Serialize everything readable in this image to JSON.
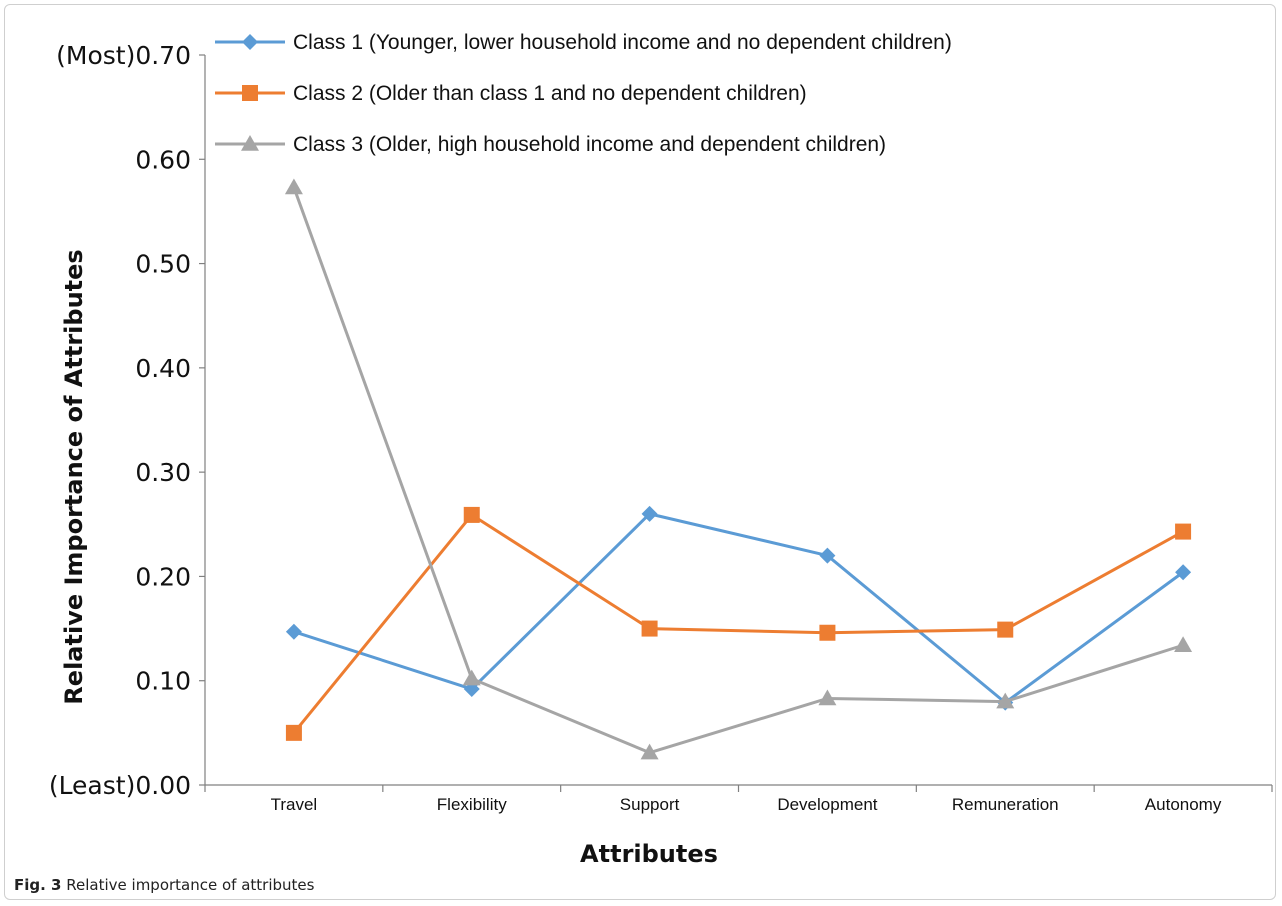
{
  "chart_data": {
    "type": "line",
    "categories": [
      "Travel",
      "Flexibility",
      "Support",
      "Development",
      "Remuneration",
      "Autonomy"
    ],
    "series": [
      {
        "name": "Class 1 (Younger, lower household income and no dependent children)",
        "color": "#5b9bd5",
        "marker": "diamond",
        "values": [
          0.147,
          0.092,
          0.26,
          0.22,
          0.079,
          0.204
        ]
      },
      {
        "name": "Class 2 (Older than class 1 and no dependent children)",
        "color": "#ed7d31",
        "marker": "square",
        "values": [
          0.05,
          0.259,
          0.15,
          0.146,
          0.149,
          0.243
        ]
      },
      {
        "name": "Class 3 (Older, high household income and dependent children)",
        "color": "#a5a5a5",
        "marker": "triangle",
        "values": [
          0.573,
          0.102,
          0.031,
          0.083,
          0.08,
          0.134
        ]
      }
    ],
    "ylim": [
      0,
      0.7
    ],
    "yticks": [
      "0.00",
      "0.10",
      "0.20",
      "0.30",
      "0.40",
      "0.50",
      "0.60",
      "0.70"
    ],
    "ytick_prefix_top": "(Most)",
    "ytick_prefix_bottom": "(Least)",
    "xlabel": "Attributes",
    "ylabel": "Relative Importance of Attributes",
    "legend_position": "top"
  },
  "caption": {
    "label": "Fig. 3",
    "text": "Relative importance of attributes"
  }
}
